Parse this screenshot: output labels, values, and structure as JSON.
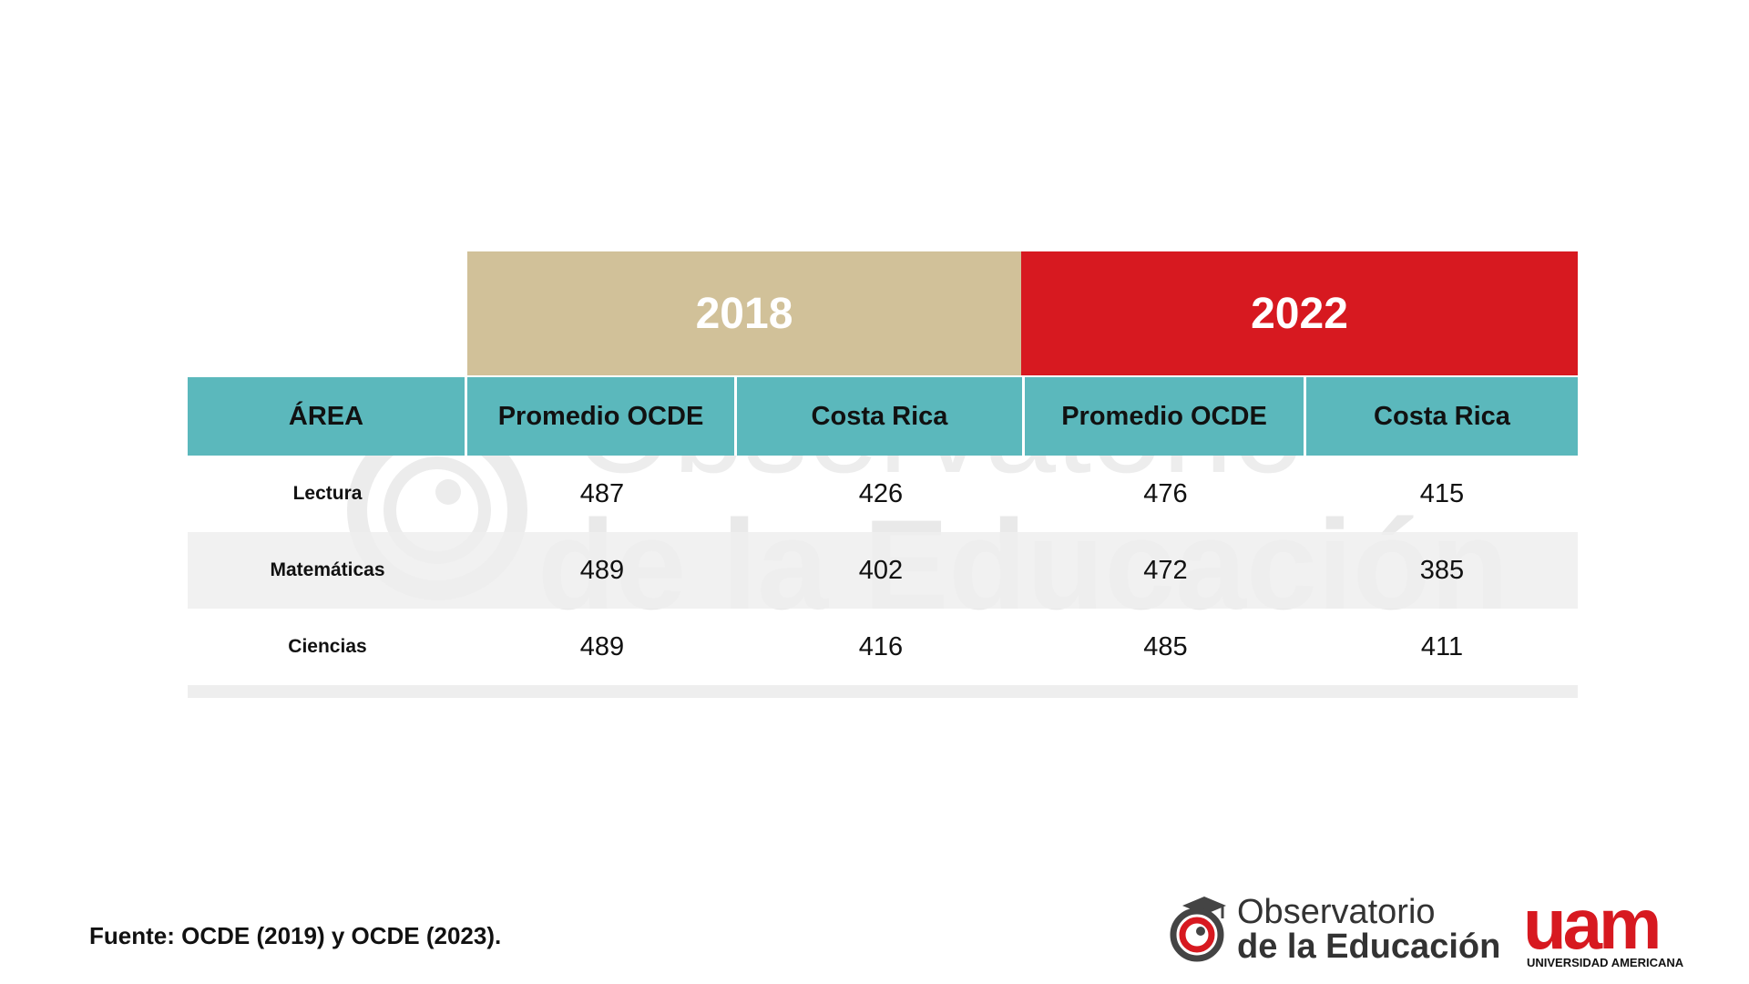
{
  "colors": {
    "year_2018_bg": "#d1c199",
    "year_2022_bg": "#d71920",
    "header_bg": "#5bb8bc",
    "shade_row": "#eeeeee"
  },
  "chart_data": {
    "type": "table",
    "year_groups": [
      "2018",
      "2022"
    ],
    "columns": [
      "ÁREA",
      "Promedio OCDE",
      "Costa Rica",
      "Promedio OCDE",
      "Costa Rica"
    ],
    "rows": [
      {
        "area": "Lectura",
        "values": [
          "487",
          "426",
          "476",
          "415"
        ]
      },
      {
        "area": "Matemáticas",
        "values": [
          "489",
          "402",
          "472",
          "385"
        ]
      },
      {
        "area": "Ciencias",
        "values": [
          "489",
          "416",
          "485",
          "411"
        ]
      }
    ]
  },
  "watermark": {
    "line1": "Observatorio",
    "line2": "de la Educación"
  },
  "footer": {
    "source": "Fuente: OCDE (2019) y OCDE (2023)."
  },
  "logos": {
    "observatorio_line1": "Observatorio",
    "observatorio_line2": "de la Educación",
    "uam_mark": "uam",
    "uam_name": "UNIVERSIDAD AMERICANA"
  }
}
